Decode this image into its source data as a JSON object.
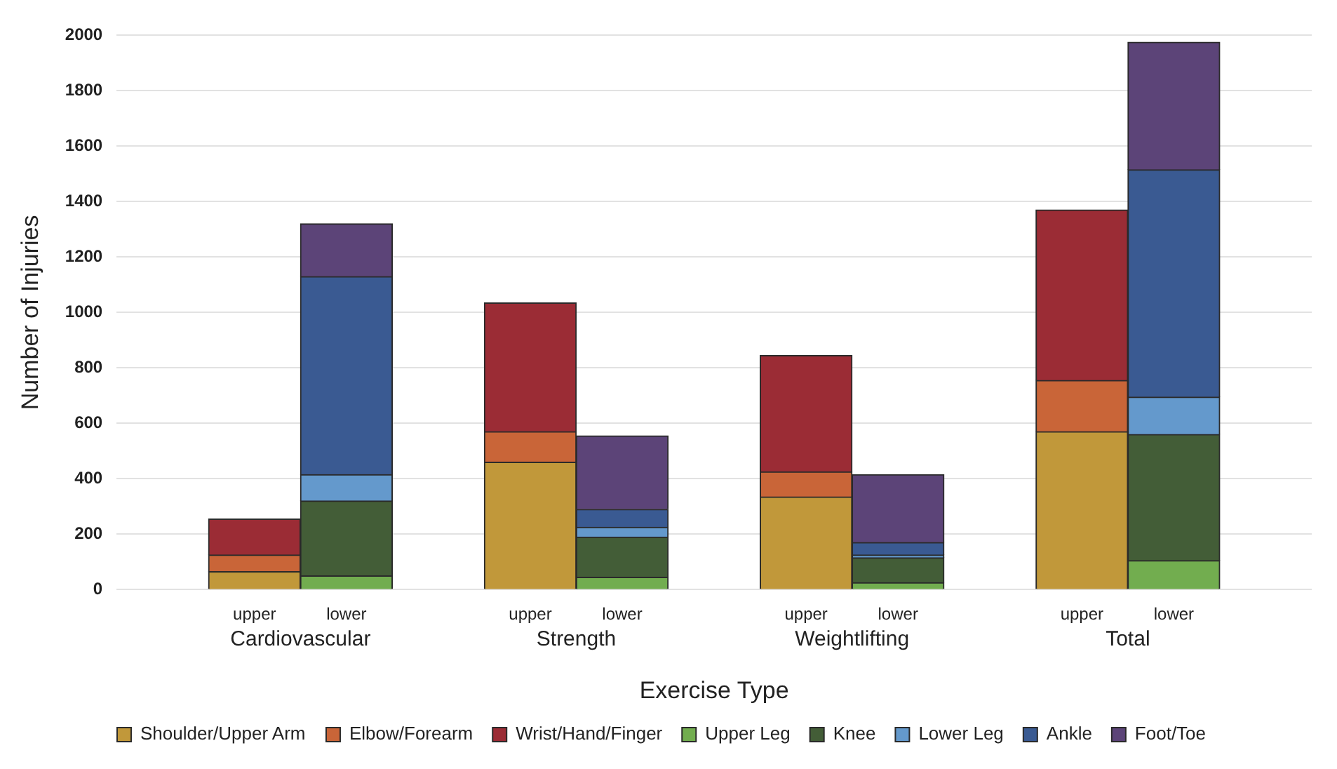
{
  "chart_data": {
    "type": "bar",
    "stacked": true,
    "xlabel": "Exercise Type",
    "ylabel": "Number of Injuries",
    "categories": [
      "upper",
      "lower",
      "upper",
      "lower",
      "upper",
      "lower",
      "upper",
      "lower"
    ],
    "annotations": [
      "Cardiovascular",
      "Strength",
      "Weightlifting",
      "Total"
    ],
    "series": [
      {
        "name": "Shoulder/Upper Arm",
        "color": "#c1983a",
        "values": [
          65,
          null,
          460,
          null,
          335,
          null,
          570,
          null
        ]
      },
      {
        "name": "Elbow/Forearm",
        "color": "#c96538",
        "values": [
          60,
          null,
          110,
          null,
          90,
          null,
          185,
          null
        ]
      },
      {
        "name": "Wrist/Hand/Finger",
        "color": "#9b2c35",
        "values": [
          130,
          null,
          465,
          null,
          420,
          null,
          615,
          null
        ]
      },
      {
        "name": "Upper Leg",
        "color": "#72ad4f",
        "values": [
          null,
          50,
          null,
          45,
          null,
          25,
          null,
          105
        ]
      },
      {
        "name": "Knee",
        "color": "#435d37",
        "values": [
          null,
          270,
          null,
          145,
          null,
          90,
          null,
          455
        ]
      },
      {
        "name": "Lower Leg",
        "color": "#6499cc",
        "values": [
          null,
          95,
          null,
          35,
          null,
          10,
          null,
          135
        ]
      },
      {
        "name": "Ankle",
        "color": "#3a5a92",
        "values": [
          null,
          715,
          null,
          65,
          null,
          45,
          null,
          820
        ]
      },
      {
        "name": "Foot/Toe",
        "color": "#5c4478",
        "values": [
          null,
          190,
          null,
          265,
          null,
          245,
          null,
          460
        ]
      }
    ],
    "ylim": [
      0,
      2000
    ],
    "yticks": [
      0,
      200,
      400,
      600,
      800,
      1000,
      1200,
      1400,
      1600,
      1800,
      2000
    ],
    "grid": "y",
    "legend": "bottom"
  }
}
